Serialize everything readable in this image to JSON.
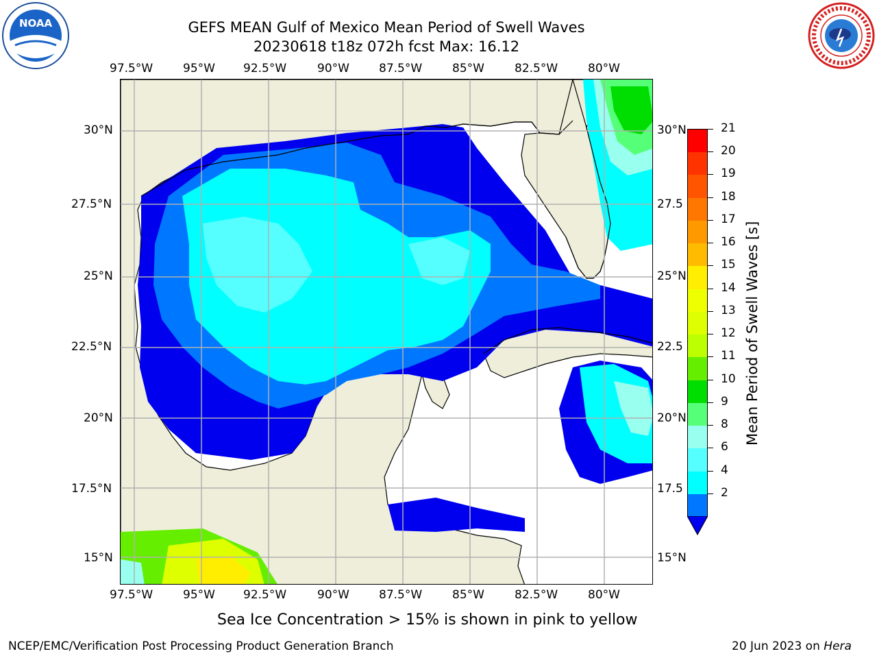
{
  "header": {
    "title_line1": "GEFS MEAN Gulf of Mexico Mean Period of Swell Waves",
    "title_line2": "20230618 t18z 072h fcst   Max: 16.12"
  },
  "logos": {
    "left": "noaa-logo",
    "right": "nws-logo"
  },
  "map": {
    "top_lon_labels": [
      "97.5°W",
      "95°W",
      "92.5°W",
      "90°W",
      "87.5°W",
      "85°W",
      "82.5°W",
      "80°W"
    ],
    "bottom_lon_labels": [
      "97.5°W",
      "95°W",
      "92.5°W",
      "90°W",
      "87.5°W",
      "85°W",
      "82.5°W",
      "80°W"
    ],
    "left_lat_labels": [
      "30°N",
      "27.5°N",
      "25°N",
      "22.5°N",
      "20°N",
      "17.5°N",
      "15°N"
    ],
    "right_lat_labels": [
      "30°N",
      "27.5",
      "25°N",
      "22.5",
      "20°N",
      "17.5",
      "15°N"
    ],
    "colors": {
      "land": "#eeeedb",
      "ocean_missing": "#ffffff",
      "grid": "#b0b0b0"
    }
  },
  "colorbar": {
    "label": "Mean Period of Swell Waves [s]",
    "ticks": [
      "21",
      "20",
      "19",
      "18",
      "17",
      "16",
      "15",
      "14",
      "13",
      "12",
      "11",
      "10",
      "9",
      "8",
      "6",
      "4",
      "2"
    ],
    "colors": [
      "#ff0000",
      "#ff3300",
      "#ff5500",
      "#ff7700",
      "#ff9900",
      "#ffbb00",
      "#ffee00",
      "#eeff00",
      "#ddff00",
      "#bbff00",
      "#66ee00",
      "#00dd00",
      "#55ff77",
      "#99ffee",
      "#55ffff",
      "#00ffff",
      "#0077ff"
    ],
    "under_color": "#0000ee"
  },
  "subcaption": "Sea Ice Concentration > 15% is shown in pink to yellow",
  "footer": {
    "left": "NCEP/EMC/Verification Post Processing Product Generation Branch",
    "right_date": "20 Jun 2023 on ",
    "right_host": "Hera"
  }
}
